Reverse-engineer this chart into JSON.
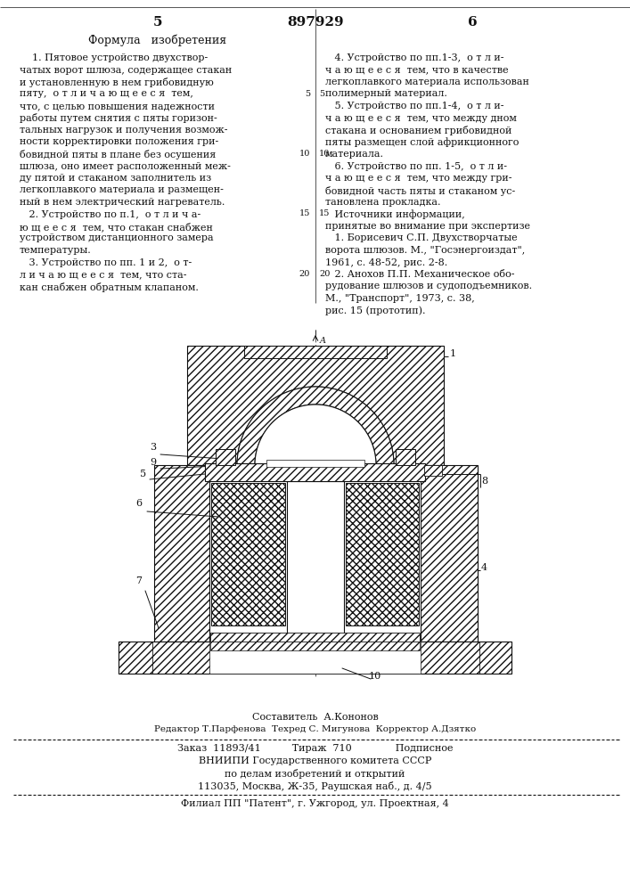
{
  "patent_number": "897929",
  "page_left": "5",
  "page_right": "6",
  "section_title": "Формула   изобретения",
  "col1_lines": [
    "    1. Пятовое устройство двухствор-",
    "чатых ворот шлюза, содержащее стакан",
    "и установленную в нем грибовидную",
    "пяту,  о т л и ч а ю щ е е с я  тем,",
    "что, с целью повышения надежности",
    "работы путем снятия с пяты горизон-",
    "тальных нагрузок и получения возмож-",
    "ности корректировки положения гри-",
    "бовидной пяты в плане без осушения",
    "шлюза, оно имеет расположенный меж-",
    "ду пятой и стаканом заполнитель из",
    "легкоплавкого материала и размещен-",
    "ный в нем электрический нагреватель.",
    "   2. Устройство по п.1,  о т л и ч а-",
    "ю щ е е с я  тем, что стакан снабжен",
    "устройством дистанционного замера",
    "температуры.",
    "   3. Устройство по пп. 1 и 2,  о т-",
    "л и ч а ю щ е е с я  тем, что ста-",
    "кан снабжен обратным клапаном."
  ],
  "col2_lines": [
    "   4. Устройство по пп.1-3,  о т л и-",
    "ч а ю щ е е с я  тем, что в качестве",
    "легкоплавкого материала использован",
    "полимерный материал.",
    "   5. Устройство по пп.1-4,  о т л и-",
    "ч а ю щ е е с я  тем, что между дном",
    "стакана и основанием грибовидной",
    "пяты размещен слой африкционного",
    "материала.",
    "   6. Устройство по пп. 1-5,  о т л и-",
    "ч а ю щ е е с я  тем, что между гри-",
    "бовидной часть пяты и стаканом ус-",
    "тановлена прокладка.",
    "   Источники информации,",
    "принятые во внимание при экспертизе",
    "   1. Борисевич С.П. Двухстворчатые",
    "ворота шлюзов. М., \"Госэнергоиздат\",",
    "1961, с. 48-52, рис. 2-8.",
    "   2. Анохов П.П. Механическое обо-",
    "рудование шлюзов и судоподъемников.",
    "М., \"Транспорт\", 1973, с. 38,",
    "рис. 15 (прототип)."
  ],
  "line_numbers": [
    [
      3,
      "5"
    ],
    [
      8,
      "10"
    ],
    [
      13,
      "15"
    ],
    [
      18,
      "20"
    ]
  ],
  "footer1": "Составитель  А.Кононов",
  "footer2": "Редактор Т.Парфенова  Техред С. Мигунова  Корректор А.Дзятко",
  "footer3": "Заказ  11893/41          Тираж  710              Подписное",
  "footer4": "ВНИИПИ Государственного комитета СССР",
  "footer5": "по делам изобретений и открытий",
  "footer6": "113035, Москва, Ж-35, Раушская наб., д. 4/5",
  "footer7": "Филиал ПП \"Патент\", г. Ужгород, ул. Проектная, 4",
  "bg": "#ffffff",
  "tc": "#111111"
}
